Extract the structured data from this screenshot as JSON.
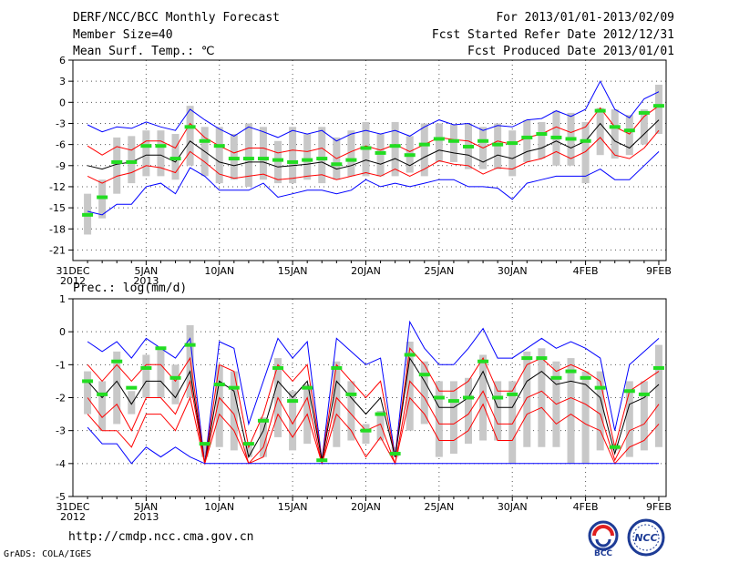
{
  "header": {
    "title": "DERF/NCC/BCC Monthly Forecast",
    "member_size": "Member Size=40",
    "variable": "Mean Surf. Temp.: ℃",
    "forecast_period": "For 2013/01/01-2013/02/09",
    "fcst_started": "Fcst Started Refer Date 2012/12/31",
    "fcst_produced": "Fcst Produced Date 2013/01/01"
  },
  "footer": {
    "url": "http://cmdp.ncc.cma.gov.cn",
    "grads": "GrADS: COLA/IGES",
    "logo_bcc": "BCC",
    "logo_ncc": "NCC"
  },
  "colors": {
    "envelope": "#0000ff",
    "spread": "#ff0000",
    "mean": "#000000",
    "observed": "#22dd22",
    "box": "#c8c8c8"
  },
  "chart_data": [
    {
      "type": "line",
      "title": "Mean Surf. Temp.: ℃",
      "ylim": [
        -22.5,
        6
      ],
      "yticks": [
        6,
        3,
        0,
        -3,
        -6,
        -9,
        -12,
        -15,
        -18,
        -21
      ],
      "ytick_labels": [
        "6",
        "3",
        "0",
        "-3",
        "-6",
        "-9",
        "-12",
        "-15",
        "-18",
        "-21"
      ],
      "xticks": [
        {
          "day": 0,
          "label": "31DEC",
          "label2": "2012"
        },
        {
          "day": 5,
          "label": "5JAN",
          "label2": "2013"
        },
        {
          "day": 10,
          "label": "10JAN",
          "label2": ""
        },
        {
          "day": 15,
          "label": "15JAN",
          "label2": ""
        },
        {
          "day": 20,
          "label": "20JAN",
          "label2": ""
        },
        {
          "day": 25,
          "label": "25JAN",
          "label2": ""
        },
        {
          "day": 30,
          "label": "30JAN",
          "label2": ""
        },
        {
          "day": 35,
          "label": "4FEB",
          "label2": ""
        },
        {
          "day": 40,
          "label": "9FEB",
          "label2": ""
        }
      ],
      "days": [
        1,
        2,
        3,
        4,
        5,
        6,
        7,
        8,
        9,
        10,
        11,
        12,
        13,
        14,
        15,
        16,
        17,
        18,
        19,
        20,
        21,
        22,
        23,
        24,
        25,
        26,
        27,
        28,
        29,
        30,
        31,
        32,
        33,
        34,
        35,
        36,
        37,
        38,
        39,
        40
      ],
      "series": [
        {
          "name": "max",
          "values": [
            -3.2,
            -4.2,
            -3.5,
            -3.7,
            -2.8,
            -3.5,
            -4.0,
            -1.0,
            -2.5,
            -3.8,
            -4.8,
            -3.5,
            -4.2,
            -5.0,
            -4.0,
            -4.5,
            -4.0,
            -5.5,
            -4.5,
            -4.0,
            -4.5,
            -4.0,
            -4.8,
            -3.5,
            -2.5,
            -3.2,
            -3.0,
            -4.0,
            -3.3,
            -3.5,
            -2.5,
            -2.3,
            -1.2,
            -2.0,
            -1.0,
            3.0,
            -1.0,
            -2.2,
            0.5,
            1.5
          ]
        },
        {
          "name": "upper",
          "values": [
            -6.2,
            -7.5,
            -6.3,
            -6.8,
            -5.5,
            -5.5,
            -6.5,
            -3.0,
            -5.0,
            -6.2,
            -7.2,
            -6.5,
            -6.5,
            -7.2,
            -6.8,
            -7.0,
            -6.5,
            -8.0,
            -7.0,
            -6.2,
            -6.8,
            -6.0,
            -7.0,
            -6.0,
            -5.0,
            -5.3,
            -5.5,
            -6.5,
            -5.5,
            -6.0,
            -5.0,
            -4.5,
            -3.5,
            -4.3,
            -3.5,
            -0.8,
            -3.5,
            -4.5,
            -2.0,
            -0.5
          ]
        },
        {
          "name": "mean",
          "values": [
            -9.0,
            -9.5,
            -8.8,
            -8.5,
            -7.5,
            -7.5,
            -8.5,
            -5.5,
            -7.0,
            -8.5,
            -9.0,
            -8.5,
            -8.5,
            -9.2,
            -9.0,
            -8.8,
            -8.5,
            -9.5,
            -9.0,
            -8.2,
            -8.8,
            -8.0,
            -9.0,
            -7.8,
            -6.8,
            -7.2,
            -7.5,
            -8.5,
            -7.5,
            -8.0,
            -7.0,
            -6.5,
            -5.5,
            -6.5,
            -5.5,
            -3.0,
            -5.5,
            -6.5,
            -4.5,
            -2.5
          ]
        },
        {
          "name": "lower",
          "values": [
            -10.5,
            -11.5,
            -10.5,
            -10.0,
            -9.0,
            -9.3,
            -10.0,
            -7.0,
            -8.5,
            -10.2,
            -10.8,
            -10.5,
            -10.2,
            -11.0,
            -10.8,
            -10.5,
            -10.3,
            -11.0,
            -10.5,
            -10.0,
            -10.5,
            -9.5,
            -10.5,
            -9.5,
            -8.3,
            -8.8,
            -9.0,
            -10.2,
            -9.3,
            -9.5,
            -8.5,
            -8.0,
            -7.0,
            -8.0,
            -7.0,
            -5.0,
            -7.5,
            -8.0,
            -6.5,
            -4.0
          ]
        },
        {
          "name": "min",
          "values": [
            -15.5,
            -16.0,
            -14.5,
            -14.5,
            -12.0,
            -11.5,
            -13.0,
            -9.3,
            -10.5,
            -12.5,
            -12.5,
            -12.5,
            -11.5,
            -13.5,
            -13.0,
            -12.5,
            -12.5,
            -13.0,
            -12.5,
            -11.0,
            -12.0,
            -11.5,
            -12.0,
            -11.5,
            -11.0,
            -11.0,
            -12.0,
            -12.0,
            -12.2,
            -13.8,
            -11.5,
            -11.0,
            -10.5,
            -10.5,
            -10.5,
            -9.5,
            -11.0,
            -11.0,
            -9.0,
            -7.0
          ]
        },
        {
          "name": "observed",
          "values": [
            -16.0,
            -13.5,
            -8.5,
            -8.5,
            -6.2,
            -6.2,
            -8.0,
            -3.5,
            -5.5,
            -6.2,
            -8.0,
            -8.0,
            -8.0,
            -8.2,
            -8.5,
            -8.2,
            -8.0,
            -8.8,
            -8.2,
            -6.5,
            -7.2,
            -6.2,
            -7.5,
            -6.0,
            -5.2,
            -5.5,
            -6.3,
            -5.5,
            -6.0,
            -5.8,
            -5.0,
            -4.5,
            -5.0,
            -5.2,
            -5.5,
            -1.2,
            -3.5,
            -4.0,
            -1.5,
            -0.5
          ]
        },
        {
          "name": "box_top",
          "values": [
            -13.0,
            -11.0,
            -5.0,
            -4.8,
            -4.0,
            -4.0,
            -4.5,
            -0.5,
            -3.5,
            -3.5,
            -4.5,
            -3.0,
            -3.5,
            -5.5,
            -3.5,
            -4.5,
            -3.5,
            -5.0,
            -4.0,
            -2.8,
            -4.5,
            -2.8,
            -4.8,
            -3.0,
            -3.0,
            -3.2,
            -3.0,
            -3.5,
            -3.0,
            -4.0,
            -2.5,
            -2.8,
            -1.2,
            -1.5,
            -2.8,
            -0.8,
            -1.0,
            -1.8,
            -1.0,
            2.5
          ]
        },
        {
          "name": "box_bottom",
          "values": [
            -18.8,
            -16.5,
            -13.0,
            -11.5,
            -10.5,
            -10.5,
            -11.0,
            -9.0,
            -10.5,
            -11.5,
            -11.0,
            -12.0,
            -11.0,
            -11.5,
            -11.5,
            -11.0,
            -11.5,
            -11.0,
            -10.5,
            -10.5,
            -10.5,
            -10.5,
            -10.0,
            -10.5,
            -8.5,
            -8.5,
            -9.5,
            -9.5,
            -9.5,
            -10.5,
            -8.5,
            -8.0,
            -9.0,
            -9.0,
            -11.5,
            -7.5,
            -8.0,
            -7.5,
            -6.0,
            -4.5
          ]
        }
      ]
    },
    {
      "type": "line",
      "title": "Prec.: log(mm/d)",
      "ylim": [
        -5,
        1
      ],
      "yticks": [
        1,
        0,
        -1,
        -2,
        -3,
        -4,
        -5
      ],
      "ytick_labels": [
        "1",
        "0",
        "-1",
        "-2",
        "-3",
        "-4",
        "-5"
      ],
      "xticks": [
        {
          "day": 0,
          "label": "31DEC",
          "label2": "2012"
        },
        {
          "day": 5,
          "label": "5JAN",
          "label2": "2013"
        },
        {
          "day": 10,
          "label": "10JAN",
          "label2": ""
        },
        {
          "day": 15,
          "label": "15JAN",
          "label2": ""
        },
        {
          "day": 20,
          "label": "20JAN",
          "label2": ""
        },
        {
          "day": 25,
          "label": "25JAN",
          "label2": ""
        },
        {
          "day": 30,
          "label": "30JAN",
          "label2": ""
        },
        {
          "day": 35,
          "label": "4FEB",
          "label2": ""
        },
        {
          "day": 40,
          "label": "9FEB",
          "label2": ""
        }
      ],
      "days": [
        1,
        2,
        3,
        4,
        5,
        6,
        7,
        8,
        9,
        10,
        11,
        12,
        13,
        14,
        15,
        16,
        17,
        18,
        19,
        20,
        21,
        22,
        23,
        24,
        25,
        26,
        27,
        28,
        29,
        30,
        31,
        32,
        33,
        34,
        35,
        36,
        37,
        38,
        39,
        40
      ],
      "series": [
        {
          "name": "max",
          "values": [
            -0.3,
            -0.6,
            -0.3,
            -0.8,
            -0.2,
            -0.5,
            -0.8,
            -0.2,
            -4.0,
            -0.3,
            -0.5,
            -2.8,
            -1.5,
            -0.2,
            -0.8,
            -0.3,
            -3.9,
            -0.2,
            -0.6,
            -1.0,
            -0.8,
            -3.8,
            0.3,
            -0.5,
            -1.0,
            -1.0,
            -0.5,
            0.1,
            -0.8,
            -0.8,
            -0.5,
            -0.2,
            -0.5,
            -0.3,
            -0.5,
            -0.8,
            -3.0,
            -1.0,
            -0.6,
            -0.2
          ]
        },
        {
          "name": "upper",
          "values": [
            -1.0,
            -1.5,
            -1.0,
            -1.5,
            -1.0,
            -1.0,
            -1.5,
            -0.8,
            -4.0,
            -1.0,
            -1.2,
            -3.5,
            -2.5,
            -1.0,
            -1.5,
            -1.0,
            -3.9,
            -1.0,
            -1.5,
            -2.0,
            -1.5,
            -3.8,
            -0.5,
            -1.0,
            -1.8,
            -1.8,
            -1.5,
            -0.8,
            -1.8,
            -1.8,
            -1.0,
            -0.8,
            -1.2,
            -1.0,
            -1.2,
            -1.5,
            -3.5,
            -1.8,
            -1.5,
            -1.2
          ]
        },
        {
          "name": "mean",
          "values": [
            -1.5,
            -2.0,
            -1.5,
            -2.2,
            -1.5,
            -1.5,
            -2.0,
            -1.2,
            -4.0,
            -1.5,
            -1.8,
            -3.8,
            -3.0,
            -1.5,
            -2.0,
            -1.5,
            -3.9,
            -1.5,
            -2.0,
            -2.5,
            -2.0,
            -3.8,
            -0.8,
            -1.5,
            -2.3,
            -2.3,
            -2.0,
            -1.2,
            -2.3,
            -2.3,
            -1.5,
            -1.2,
            -1.6,
            -1.5,
            -1.6,
            -2.0,
            -3.7,
            -2.2,
            -2.0,
            -1.6
          ]
        },
        {
          "name": "lower",
          "values": [
            -2.0,
            -2.6,
            -2.2,
            -3.0,
            -2.0,
            -2.0,
            -2.5,
            -1.5,
            -4.0,
            -2.0,
            -2.5,
            -4.0,
            -3.5,
            -2.0,
            -2.8,
            -2.0,
            -4.0,
            -2.0,
            -2.5,
            -3.0,
            -2.8,
            -4.0,
            -1.5,
            -2.0,
            -2.8,
            -2.8,
            -2.5,
            -1.8,
            -2.8,
            -2.8,
            -2.0,
            -1.8,
            -2.2,
            -2.0,
            -2.2,
            -2.5,
            -3.9,
            -3.0,
            -2.8,
            -2.2
          ]
        },
        {
          "name": "lower2",
          "values": [
            -2.5,
            -3.0,
            -3.0,
            -3.5,
            -2.5,
            -2.5,
            -3.0,
            -2.0,
            -4.0,
            -2.5,
            -3.0,
            -4.0,
            -3.8,
            -2.5,
            -3.2,
            -2.5,
            -4.0,
            -2.5,
            -3.0,
            -3.8,
            -3.2,
            -4.0,
            -2.0,
            -2.5,
            -3.3,
            -3.3,
            -3.0,
            -2.2,
            -3.3,
            -3.3,
            -2.5,
            -2.3,
            -2.8,
            -2.5,
            -2.8,
            -3.0,
            -4.0,
            -3.5,
            -3.3,
            -2.8
          ]
        },
        {
          "name": "min",
          "values": [
            -2.9,
            -3.4,
            -3.4,
            -4.0,
            -3.5,
            -3.8,
            -3.5,
            -3.8,
            -4.0,
            -4.0,
            -4.0,
            -4.0,
            -4.0,
            -4.0,
            -4.0,
            -4.0,
            -4.0,
            -4.0,
            -4.0,
            -4.0,
            -4.0,
            -4.0,
            -4.0,
            -4.0,
            -4.0,
            -4.0,
            -4.0,
            -4.0,
            -4.0,
            -4.0,
            -4.0,
            -4.0,
            -4.0,
            -4.0,
            -4.0,
            -4.0,
            -4.0,
            -4.0,
            -4.0,
            -4.0
          ]
        },
        {
          "name": "observed",
          "values": [
            -1.5,
            -1.9,
            -0.9,
            -1.7,
            -1.1,
            -0.5,
            -1.4,
            -0.4,
            -3.4,
            -1.6,
            -1.7,
            -3.4,
            -2.7,
            -1.1,
            -2.1,
            -1.7,
            -3.9,
            -1.1,
            -1.9,
            -3.0,
            -2.5,
            -3.7,
            -0.7,
            -1.3,
            -2.0,
            -2.1,
            -2.0,
            -0.9,
            -2.0,
            -1.9,
            -0.8,
            -0.8,
            -1.4,
            -1.2,
            -1.4,
            -1.7,
            -3.5,
            -1.8,
            -1.9,
            -1.1
          ]
        },
        {
          "name": "box_top",
          "values": [
            -1.2,
            -1.5,
            -0.6,
            -1.8,
            -0.7,
            -0.5,
            -1.0,
            0.2,
            -3.4,
            -1.0,
            -1.2,
            -3.4,
            -2.6,
            -0.8,
            -1.8,
            -1.6,
            -3.9,
            -0.9,
            -1.5,
            -2.8,
            -2.4,
            -3.5,
            -0.3,
            -0.9,
            -1.5,
            -1.5,
            -1.4,
            -0.7,
            -1.5,
            -1.5,
            -0.6,
            -0.5,
            -0.9,
            -0.8,
            -1.2,
            -1.2,
            -3.4,
            -1.5,
            -1.5,
            -0.4
          ]
        },
        {
          "name": "box_bottom",
          "values": [
            -2.5,
            -3.0,
            -2.8,
            -2.5,
            -2.0,
            -2.0,
            -2.2,
            -2.0,
            -3.8,
            -3.5,
            -3.6,
            -3.8,
            -3.8,
            -3.2,
            -3.6,
            -3.4,
            -3.9,
            -3.5,
            -3.3,
            -3.4,
            -3.3,
            -3.8,
            -3.0,
            -2.8,
            -3.8,
            -3.7,
            -3.4,
            -3.3,
            -3.3,
            -4.0,
            -3.5,
            -3.5,
            -3.5,
            -4.0,
            -4.0,
            -3.6,
            -3.6,
            -3.8,
            -3.6,
            -3.5
          ]
        }
      ]
    }
  ]
}
